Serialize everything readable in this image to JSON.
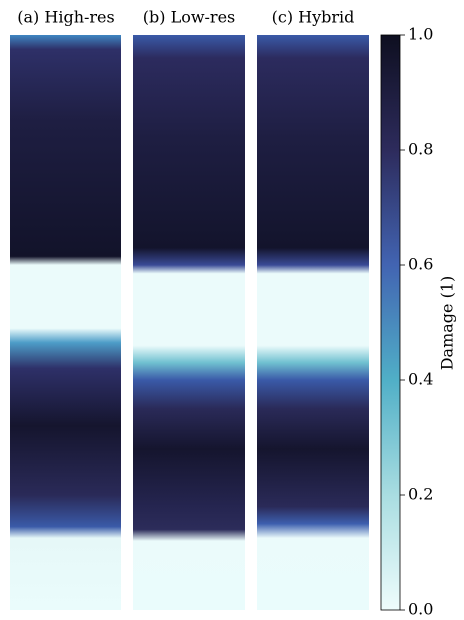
{
  "chart_data": {
    "type": "image",
    "panels": [
      "(a) High-res",
      "(b) Low-res",
      "(c) Hybrid"
    ],
    "colorbar": {
      "label": "Damage (1)",
      "lim": [
        0,
        1
      ],
      "ticks": [
        {
          "value": 0,
          "label": "0.0"
        },
        {
          "value": 0.2,
          "label": "0.2"
        },
        {
          "value": 0.4,
          "label": "0.4"
        },
        {
          "value": 0.6,
          "label": "0.6"
        },
        {
          "value": 0.8,
          "label": "0.8"
        },
        {
          "value": 1,
          "label": "1.0"
        }
      ],
      "colormap": [
        "#eefcfc",
        "#a9dde1",
        "#50afc7",
        "#4264b2",
        "#2d2b5c",
        "#0e0f20"
      ]
    }
  }
}
